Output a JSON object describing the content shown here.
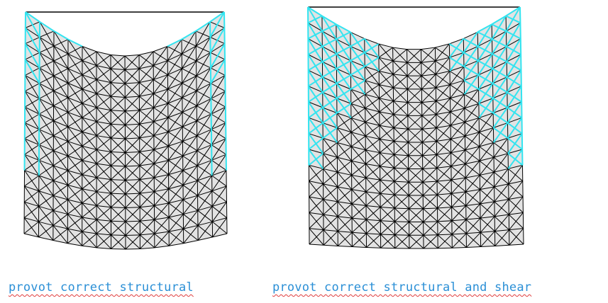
{
  "captions": {
    "left": "provot correct structural",
    "right": "provot correct structural and shear"
  },
  "colors": {
    "mesh": "#000000",
    "fill": "#e3e3e3",
    "highlight": "#33e4f0",
    "caption": "#2a8fd6",
    "underline": "#e03c3c"
  }
}
